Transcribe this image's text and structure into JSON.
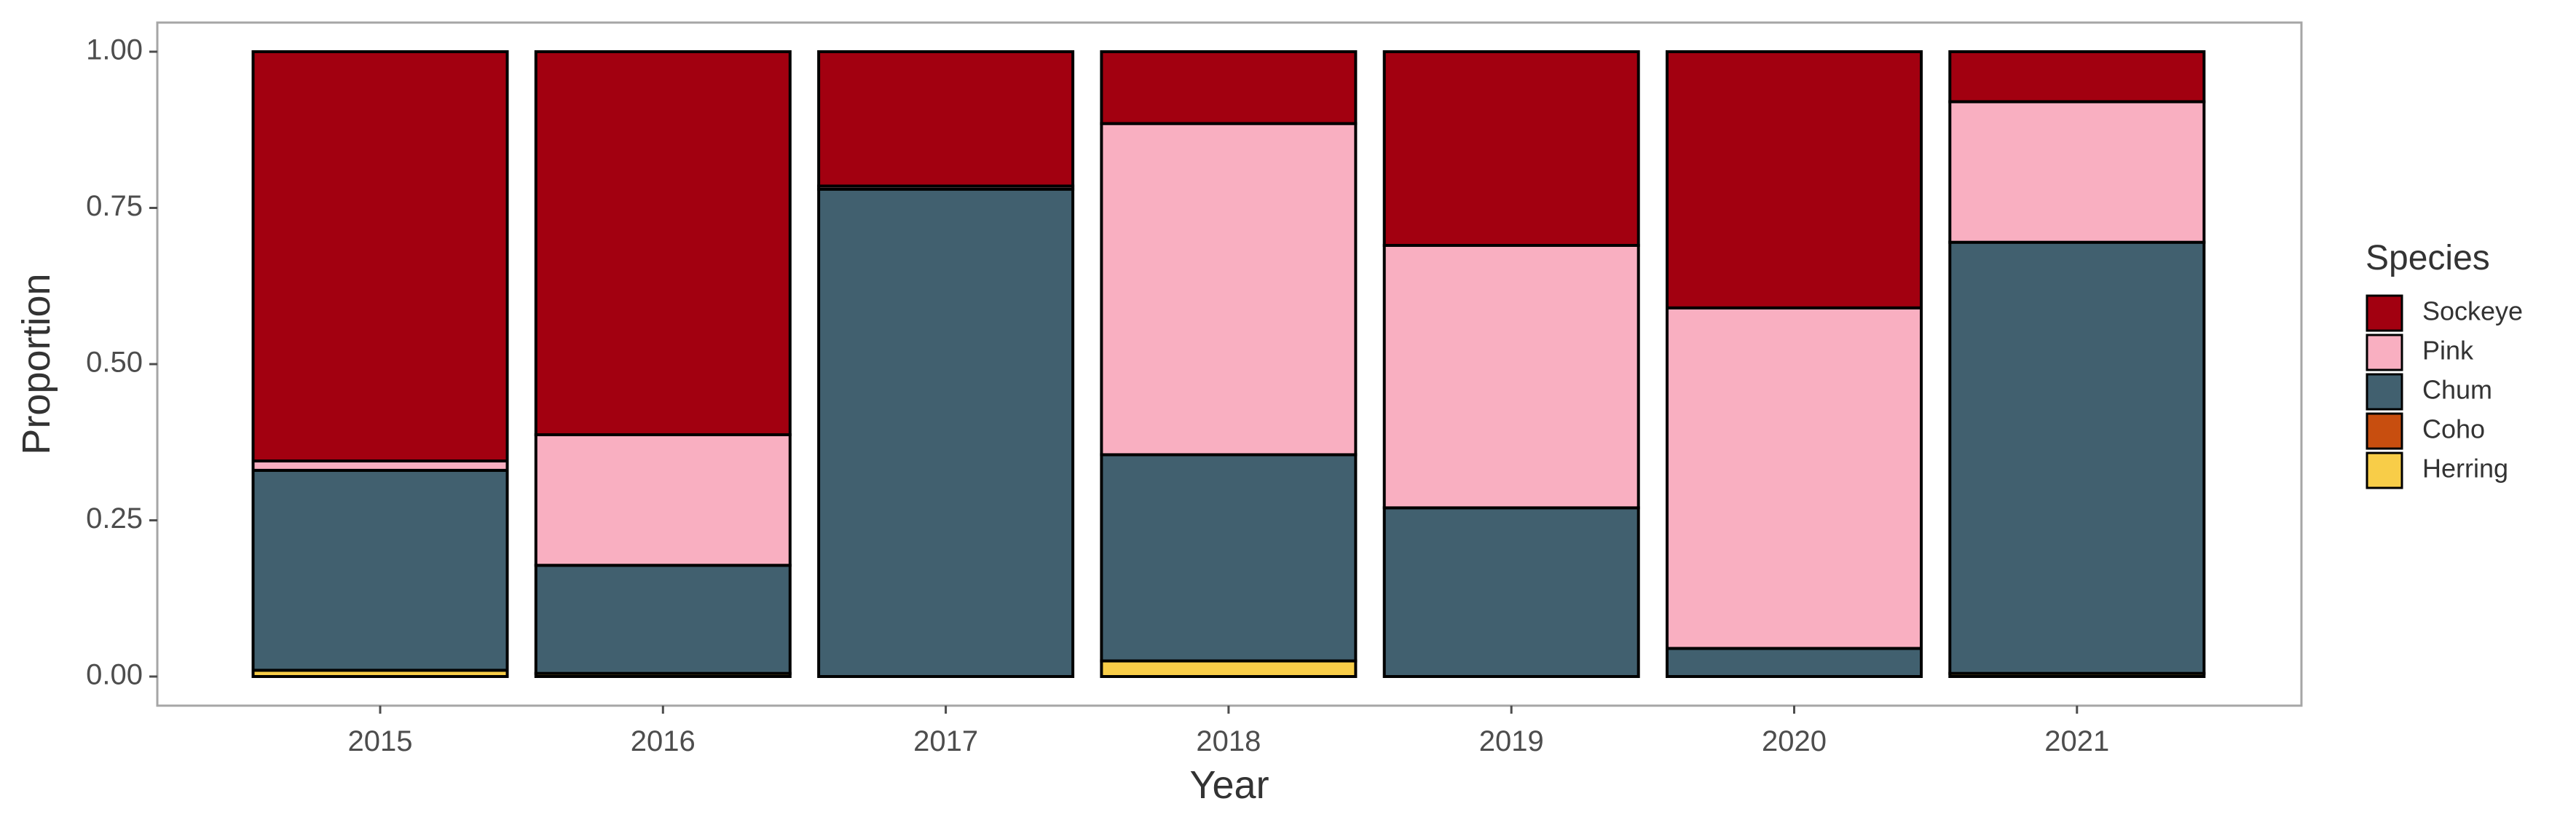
{
  "chart_data": {
    "type": "bar",
    "stacked": true,
    "xlabel": "Year",
    "ylabel": "Proportion",
    "ylim": [
      0,
      1
    ],
    "yticks": [
      "0.00",
      "0.25",
      "0.50",
      "0.75",
      "1.00"
    ],
    "grid": false,
    "legend_position": "right",
    "legend_title": "Species",
    "categories": [
      "2015",
      "2016",
      "2017",
      "2018",
      "2019",
      "2020",
      "2021"
    ],
    "series": [
      {
        "name": "Herring",
        "color": "#F8CD48",
        "values": [
          0.01,
          0.005,
          0.0,
          0.025,
          0.0,
          0.0,
          0.005
        ]
      },
      {
        "name": "Coho",
        "color": "#C84E0F",
        "values": [
          0.0,
          0.0,
          0.0,
          0.0,
          0.0,
          0.0,
          0.0
        ]
      },
      {
        "name": "Chum",
        "color": "#41606F",
        "values": [
          0.32,
          0.173,
          0.78,
          0.33,
          0.27,
          0.045,
          0.69
        ]
      },
      {
        "name": "Pink",
        "color": "#F9AFC1",
        "values": [
          0.015,
          0.209,
          0.005,
          0.53,
          0.42,
          0.545,
          0.225
        ]
      },
      {
        "name": "Sockeye",
        "color": "#A20010",
        "values": [
          0.655,
          0.613,
          0.215,
          0.115,
          0.31,
          0.41,
          0.08
        ]
      }
    ],
    "legend_order": [
      "Sockeye",
      "Pink",
      "Chum",
      "Coho",
      "Herring"
    ]
  }
}
